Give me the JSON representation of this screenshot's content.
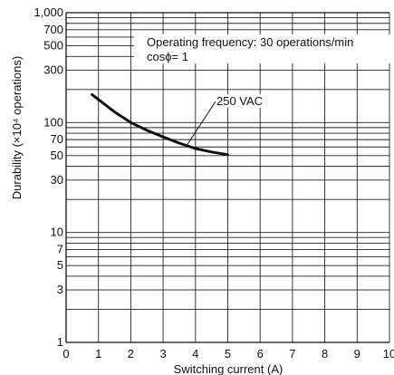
{
  "chart_data": {
    "type": "line",
    "title": "",
    "xlabel": "Switching current (A)",
    "ylabel": "Durability (×10⁴ operations)",
    "xlim": [
      0,
      10
    ],
    "ylim": [
      1,
      1000
    ],
    "yscale": "log",
    "grid": true,
    "x_ticks": [
      "0",
      "1",
      "2",
      "3",
      "4",
      "5",
      "6",
      "7",
      "8",
      "9",
      "10"
    ],
    "y_ticks": [
      {
        "value": 1,
        "label": "1"
      },
      {
        "value": 3,
        "label": "3"
      },
      {
        "value": 5,
        "label": "5"
      },
      {
        "value": 7,
        "label": "7"
      },
      {
        "value": 10,
        "label": "10"
      },
      {
        "value": 30,
        "label": "30"
      },
      {
        "value": 50,
        "label": "50"
      },
      {
        "value": 70,
        "label": "70"
      },
      {
        "value": 100,
        "label": "100"
      },
      {
        "value": 300,
        "label": "300"
      },
      {
        "value": 500,
        "label": "500"
      },
      {
        "value": 700,
        "label": "700"
      },
      {
        "value": 1000,
        "label": "1,000"
      }
    ],
    "y_gridlines": [
      1,
      2,
      3,
      4,
      5,
      6,
      7,
      8,
      9,
      10,
      20,
      30,
      40,
      50,
      60,
      70,
      80,
      90,
      100,
      200,
      300,
      400,
      500,
      600,
      700,
      800,
      900,
      1000
    ],
    "annotations": [
      "Operating frequency: 30 operations/min",
      "cosϕ= 1"
    ],
    "series": [
      {
        "name": "250 VAC",
        "x": [
          0.8,
          1.5,
          2.0,
          2.5,
          3.0,
          3.5,
          4.0,
          4.5,
          5.0
        ],
        "y": [
          180,
          125,
          100,
          85,
          74,
          65,
          58,
          54,
          51
        ],
        "color": "#111111"
      }
    ]
  }
}
